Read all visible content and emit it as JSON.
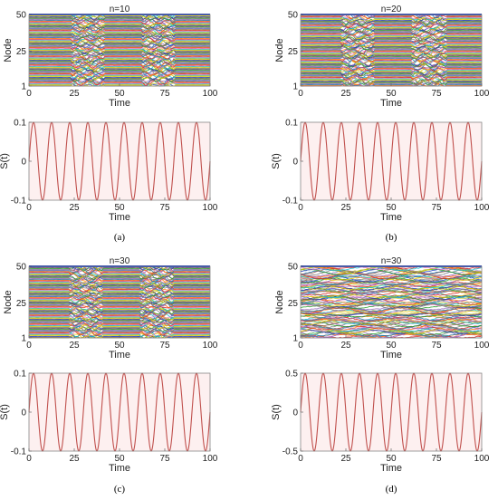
{
  "chart_data": [
    {
      "id": "a",
      "panel_label": "(a)",
      "top": {
        "type": "heatmap",
        "title": "n=10",
        "xlabel": "Time",
        "ylabel": "Node",
        "xlim": [
          0,
          100
        ],
        "ylim": [
          1,
          50
        ],
        "xticks": [
          "0",
          "25",
          "50",
          "75",
          "100"
        ],
        "yticks": [
          "1",
          "25",
          "50"
        ],
        "nodes": 50,
        "disturbed_intervals": [
          [
            24,
            41
          ],
          [
            63,
            80
          ]
        ],
        "style": "mostly-flat"
      },
      "bottom": {
        "type": "line",
        "xlabel": "Time",
        "ylabel": "S(t)",
        "xlim": [
          0,
          100
        ],
        "ylim": [
          -0.1,
          0.1
        ],
        "xticks": [
          "0",
          "25",
          "50",
          "75",
          "100"
        ],
        "yticks": [
          "-0.1",
          "0",
          "0.1"
        ],
        "amplitude": 0.1,
        "period": 10,
        "line_color": "#c0504d",
        "bg_color": "#fdf0f0"
      }
    },
    {
      "id": "b",
      "panel_label": "(b)",
      "top": {
        "type": "heatmap",
        "title": "n=20",
        "xlabel": "Time",
        "ylabel": "Node",
        "xlim": [
          0,
          100
        ],
        "ylim": [
          1,
          50
        ],
        "xticks": [
          "0",
          "25",
          "50",
          "75",
          "100"
        ],
        "yticks": [
          "1",
          "25",
          "50"
        ],
        "nodes": 50,
        "disturbed_intervals": [
          [
            23,
            40
          ],
          [
            62,
            80
          ]
        ],
        "style": "mostly-flat"
      },
      "bottom": {
        "type": "line",
        "xlabel": "Time",
        "ylabel": "S(t)",
        "xlim": [
          0,
          100
        ],
        "ylim": [
          -0.1,
          0.1
        ],
        "xticks": [
          "0",
          "25",
          "50",
          "75",
          "100"
        ],
        "yticks": [
          "-0.1",
          "0",
          "0.1"
        ],
        "amplitude": 0.1,
        "period": 10,
        "line_color": "#c0504d",
        "bg_color": "#fdf0f0"
      }
    },
    {
      "id": "c",
      "panel_label": "(c)",
      "top": {
        "type": "heatmap",
        "title": "n=30",
        "xlabel": "Time",
        "ylabel": "Node",
        "xlim": [
          0,
          100
        ],
        "ylim": [
          1,
          50
        ],
        "xticks": [
          "0",
          "25",
          "50",
          "75",
          "100"
        ],
        "yticks": [
          "1",
          "25",
          "50"
        ],
        "nodes": 50,
        "disturbed_intervals": [
          [
            23,
            40
          ],
          [
            62,
            79
          ]
        ],
        "style": "mostly-flat"
      },
      "bottom": {
        "type": "line",
        "xlabel": "Time",
        "ylabel": "S(t)",
        "xlim": [
          0,
          100
        ],
        "ylim": [
          -0.1,
          0.1
        ],
        "xticks": [
          "0",
          "25",
          "50",
          "75",
          "100"
        ],
        "yticks": [
          "-0.1",
          "0",
          "0.1"
        ],
        "amplitude": 0.1,
        "period": 10,
        "line_color": "#c0504d",
        "bg_color": "#fdf0f0"
      }
    },
    {
      "id": "d",
      "panel_label": "(d)",
      "top": {
        "type": "heatmap",
        "title": "n=30",
        "xlabel": "Time",
        "ylabel": "Node",
        "xlim": [
          0,
          100
        ],
        "ylim": [
          1,
          50
        ],
        "xticks": [
          "0",
          "25",
          "50",
          "75",
          "100"
        ],
        "yticks": [
          "1",
          "25",
          "50"
        ],
        "nodes": 50,
        "disturbed_intervals": [
          [
            0,
            100
          ]
        ],
        "style": "wavy"
      },
      "bottom": {
        "type": "line",
        "xlabel": "Time",
        "ylabel": "S(t)",
        "xlim": [
          0,
          100
        ],
        "ylim": [
          -0.5,
          0.5
        ],
        "xticks": [
          "0",
          "25",
          "50",
          "75",
          "100"
        ],
        "yticks": [
          "-0.5",
          "0",
          "0.5"
        ],
        "amplitude": 0.5,
        "period": 10,
        "line_color": "#c0504d",
        "bg_color": "#fdf0f0"
      }
    }
  ],
  "palette": [
    "#1f3fbf",
    "#d62728",
    "#2ca02c",
    "#17becf",
    "#9467bd",
    "#e6c700",
    "#ff7f0e",
    "#8c564b",
    "#e377c2",
    "#7f7f7f",
    "#bcbd22",
    "#1f77b4"
  ]
}
